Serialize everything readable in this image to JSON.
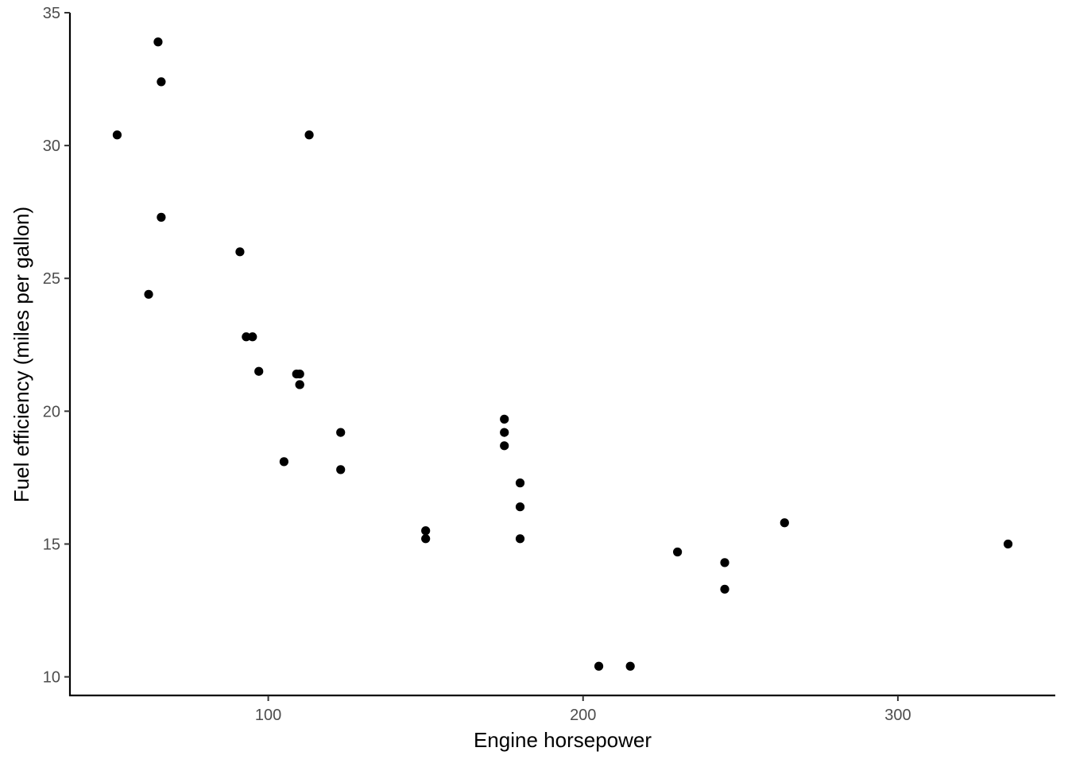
{
  "chart_data": {
    "type": "scatter",
    "xlabel": "Engine horsepower",
    "ylabel": "Fuel efficiency (miles per gallon)",
    "xlim": [
      37,
      350
    ],
    "ylim": [
      9.3,
      35
    ],
    "xticks": [
      100,
      200,
      300
    ],
    "yticks": [
      10,
      15,
      20,
      25,
      30,
      35
    ],
    "grid": false,
    "legend": "none",
    "point_color": "#000000",
    "points": [
      {
        "x": 110,
        "y": 21.0
      },
      {
        "x": 110,
        "y": 21.0
      },
      {
        "x": 93,
        "y": 22.8
      },
      {
        "x": 110,
        "y": 21.4
      },
      {
        "x": 175,
        "y": 18.7
      },
      {
        "x": 105,
        "y": 18.1
      },
      {
        "x": 245,
        "y": 14.3
      },
      {
        "x": 62,
        "y": 24.4
      },
      {
        "x": 95,
        "y": 22.8
      },
      {
        "x": 123,
        "y": 19.2
      },
      {
        "x": 123,
        "y": 17.8
      },
      {
        "x": 180,
        "y": 16.4
      },
      {
        "x": 180,
        "y": 17.3
      },
      {
        "x": 180,
        "y": 15.2
      },
      {
        "x": 205,
        "y": 10.4
      },
      {
        "x": 215,
        "y": 10.4
      },
      {
        "x": 230,
        "y": 14.7
      },
      {
        "x": 66,
        "y": 32.4
      },
      {
        "x": 52,
        "y": 30.4
      },
      {
        "x": 65,
        "y": 33.9
      },
      {
        "x": 97,
        "y": 21.5
      },
      {
        "x": 150,
        "y": 15.5
      },
      {
        "x": 150,
        "y": 15.2
      },
      {
        "x": 245,
        "y": 13.3
      },
      {
        "x": 175,
        "y": 19.2
      },
      {
        "x": 66,
        "y": 27.3
      },
      {
        "x": 91,
        "y": 26.0
      },
      {
        "x": 113,
        "y": 30.4
      },
      {
        "x": 264,
        "y": 15.8
      },
      {
        "x": 175,
        "y": 19.7
      },
      {
        "x": 335,
        "y": 15.0
      },
      {
        "x": 109,
        "y": 21.4
      }
    ]
  }
}
